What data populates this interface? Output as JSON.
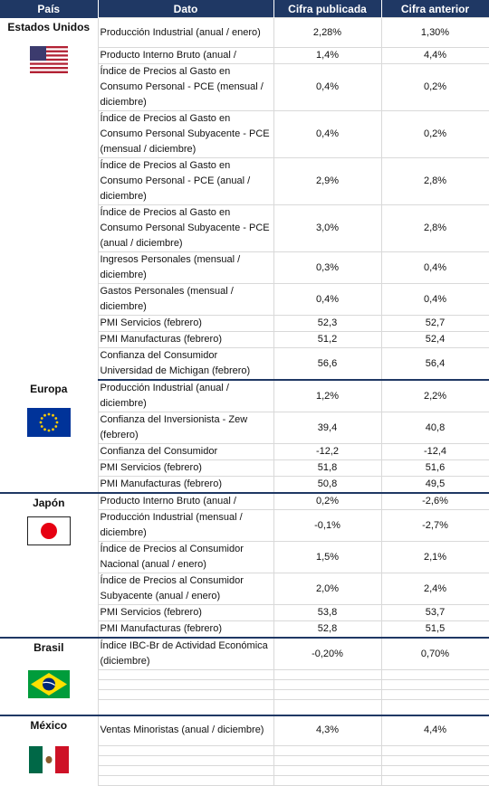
{
  "headers": {
    "pais": "País",
    "dato": "Dato",
    "publicada": "Cifra publicada",
    "anterior": "Cifra anterior"
  },
  "countries": [
    {
      "name": "Estados Unidos",
      "flag": "us-flag-icon"
    },
    {
      "name": "Europa",
      "flag": "eu-flag-icon"
    },
    {
      "name": "Japón",
      "flag": "japan-flag-icon"
    },
    {
      "name": "Brasil",
      "flag": "brazil-flag-icon"
    },
    {
      "name": "México",
      "flag": "mexico-flag-icon"
    }
  ],
  "rows": {
    "us": [
      {
        "dato": "Producción Industrial (anual / enero)",
        "pub": "2,28%",
        "ant": "1,30%"
      },
      {
        "dato": "Producto Interno Bruto (anual /",
        "pub": "1,4%",
        "ant": "4,4%"
      },
      {
        "dato": "Índice de Precios al Gasto en Consumo Personal - PCE (mensual / diciembre)",
        "pub": "0,4%",
        "ant": "0,2%"
      },
      {
        "dato": "Índice de Precios al Gasto en Consumo Personal Subyacente - PCE (mensual / diciembre)",
        "pub": "0,4%",
        "ant": "0,2%"
      },
      {
        "dato": "Índice de Precios al Gasto en Consumo Personal - PCE (anual / diciembre)",
        "pub": "2,9%",
        "ant": "2,8%"
      },
      {
        "dato": "Índice de Precios al Gasto en Consumo Personal Subyacente - PCE (anual / diciembre)",
        "pub": "3,0%",
        "ant": "2,8%"
      },
      {
        "dato": "Ingresos Personales (mensual / diciembre)",
        "pub": "0,3%",
        "ant": "0,4%"
      },
      {
        "dato": "Gastos Personales (mensual / diciembre)",
        "pub": "0,4%",
        "ant": "0,4%"
      },
      {
        "dato": "PMI Servicios (febrero)",
        "pub": "52,3",
        "ant": "52,7"
      },
      {
        "dato": "PMI Manufacturas (febrero)",
        "pub": "51,2",
        "ant": "52,4"
      },
      {
        "dato": "Confianza del Consumidor Universidad de Michigan (febrero)",
        "pub": "56,6",
        "ant": "56,4"
      }
    ],
    "eu": [
      {
        "dato": "Producción Industrial (anual / diciembre)",
        "pub": "1,2%",
        "ant": "2,2%"
      },
      {
        "dato": "Confianza del Inversionista - Zew (febrero)",
        "pub": "39,4",
        "ant": "40,8"
      },
      {
        "dato": "Confianza del Consumidor",
        "pub": "-12,2",
        "ant": "-12,4"
      },
      {
        "dato": "PMI Servicios (febrero)",
        "pub": "51,8",
        "ant": "51,6"
      },
      {
        "dato": "PMI Manufacturas (febrero)",
        "pub": "50,8",
        "ant": "49,5"
      }
    ],
    "jp": [
      {
        "dato": "Producto Interno Bruto (anual /",
        "pub": "0,2%",
        "ant": "-2,6%"
      },
      {
        "dato": "Producción Industrial (mensual / diciembre)",
        "pub": "-0,1%",
        "ant": "-2,7%"
      },
      {
        "dato": "Índice de Precios al Consumidor Nacional (anual / enero)",
        "pub": "1,5%",
        "ant": "2,1%"
      },
      {
        "dato": "Índice de Precios al Consumidor Subyacente (anual / enero)",
        "pub": "2,0%",
        "ant": "2,4%"
      },
      {
        "dato": "PMI Servicios (febrero)",
        "pub": "53,8",
        "ant": "53,7"
      },
      {
        "dato": "PMI Manufacturas (febrero)",
        "pub": "52,8",
        "ant": "51,5"
      }
    ],
    "br": [
      {
        "dato": "Índice IBC-Br de Actividad Económica (diciembre)",
        "pub": "-0,20%",
        "ant": "0,70%"
      }
    ],
    "mx": [
      {
        "dato": "Ventas Minoristas (anual / diciembre)",
        "pub": "4,3%",
        "ant": "4,4%"
      }
    ]
  }
}
